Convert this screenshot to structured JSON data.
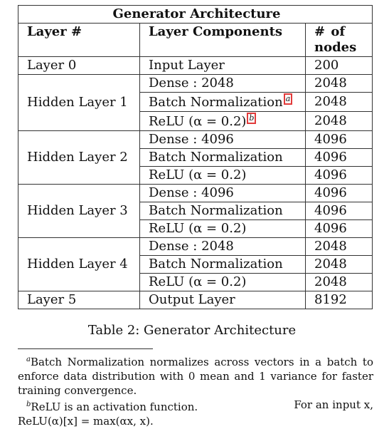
{
  "table": {
    "title": "Generator Architecture",
    "headers": [
      "Layer #",
      "Layer Components",
      "# of nodes"
    ],
    "rows": [
      {
        "layer": "Layer 0",
        "components": [
          {
            "name": "Input Layer",
            "nodes": "200"
          }
        ]
      },
      {
        "layer": "Hidden Layer 1",
        "components": [
          {
            "name": "Dense : 2048",
            "nodes": "2048"
          },
          {
            "name": "Batch Normalization",
            "nodes": "2048",
            "marker": "a"
          },
          {
            "name": "ReLU (α = 0.2)",
            "nodes": "2048",
            "marker": "b"
          }
        ]
      },
      {
        "layer": "Hidden Layer 2",
        "components": [
          {
            "name": "Dense : 4096",
            "nodes": "4096"
          },
          {
            "name": "Batch Normalization",
            "nodes": "4096"
          },
          {
            "name": "ReLU (α = 0.2)",
            "nodes": "4096"
          }
        ]
      },
      {
        "layer": "Hidden Layer 3",
        "components": [
          {
            "name": "Dense : 4096",
            "nodes": "4096"
          },
          {
            "name": "Batch Normalization",
            "nodes": "4096"
          },
          {
            "name": "ReLU (α = 0.2)",
            "nodes": "4096"
          }
        ]
      },
      {
        "layer": "Hidden Layer 4",
        "components": [
          {
            "name": "Dense : 2048",
            "nodes": "2048"
          },
          {
            "name": "Batch Normalization",
            "nodes": "2048"
          },
          {
            "name": "ReLU (α = 0.2)",
            "nodes": "2048"
          }
        ]
      },
      {
        "layer": "Layer 5",
        "components": [
          {
            "name": "Output Layer",
            "nodes": "8192"
          }
        ]
      }
    ]
  },
  "caption": "Table 2: Generator Architecture",
  "footnotes": {
    "a": {
      "marker": "a",
      "text": "Batch Normalization normalizes across vectors in a batch to enforce data distribution with 0 mean and 1 variance for faster training convergence."
    },
    "b": {
      "marker": "b",
      "line1_left": "ReLU is an activation function.",
      "line1_right": "For an input x,",
      "line2": "ReLU(α)[x] = max(αx, x)."
    }
  },
  "colors": {
    "marker_border": "#e23b3b",
    "rule": "#333333"
  }
}
